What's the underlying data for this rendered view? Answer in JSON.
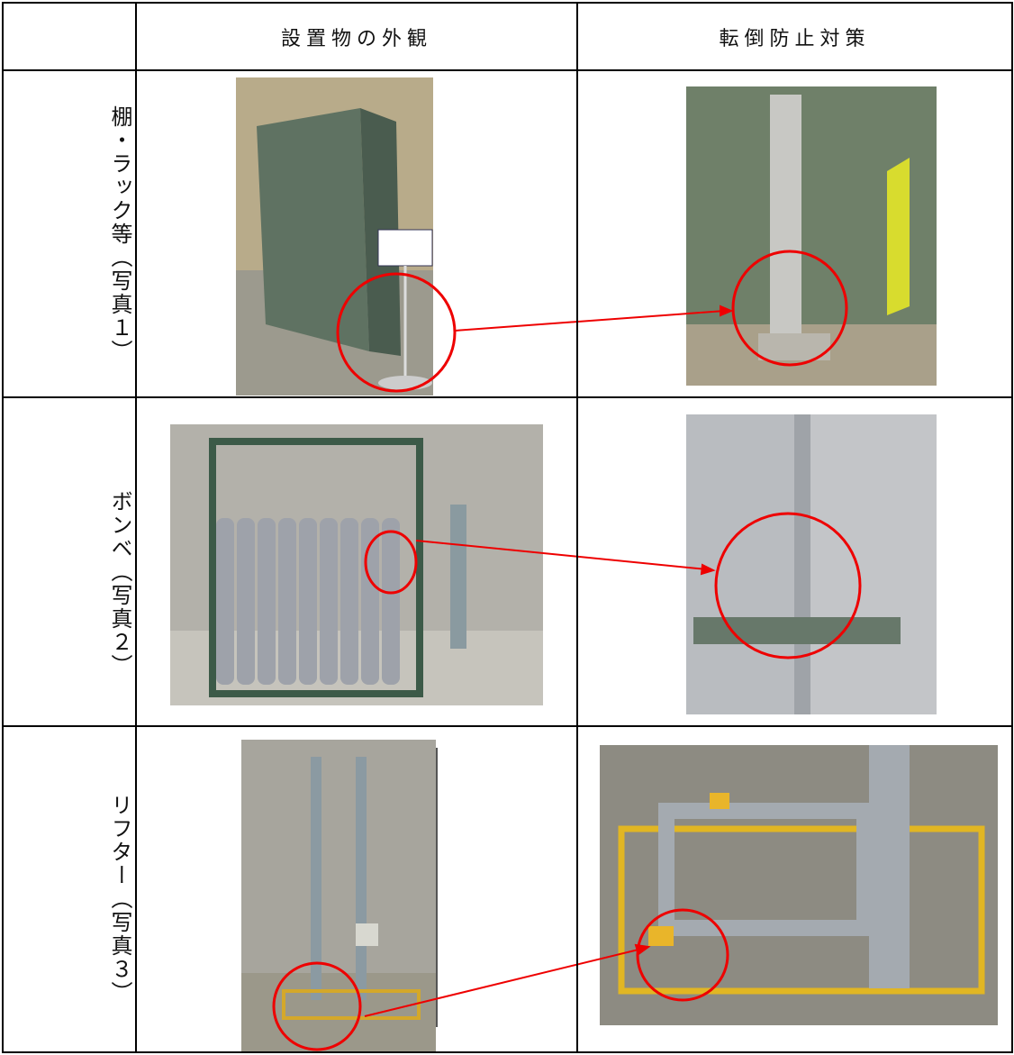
{
  "table": {
    "header": [
      "設置物の外観",
      "転倒防止対策"
    ],
    "rows": [
      {
        "label": "棚・ラック等（写真１）"
      },
      {
        "label": "ボンベ（写真２）"
      },
      {
        "label": "リフター（写真３）"
      }
    ]
  }
}
